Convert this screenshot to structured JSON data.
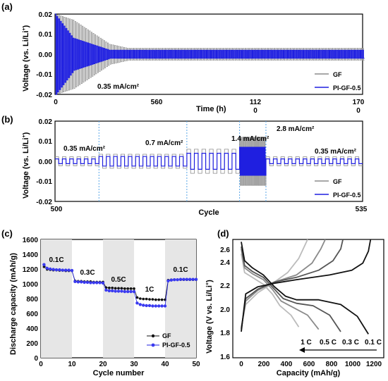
{
  "colors": {
    "gf": "#8c8c8c",
    "pi": "#1f1fe0",
    "pi_marker": "#3a3af0",
    "gf_marker": "#111111",
    "guide": "#59a6e8",
    "shade": "#e6e6e6"
  },
  "chart_data": [
    {
      "panel": "(a)",
      "type": "line",
      "xlabel": "Time (h)",
      "ylabel": "Voltage (vs. Li/Li⁺)",
      "xlim": [
        0,
        1700
      ],
      "ylim": [
        -0.02,
        0.02
      ],
      "x_ticks": [
        "0",
        "560",
        "112\n0",
        "170\n0"
      ],
      "y_ticks": [
        "0.02",
        "0.01",
        "0.00",
        "-0.01",
        "-0.02"
      ],
      "annotation": "0.35 mA/cm²",
      "series": [
        {
          "name": "GF",
          "description_envelope": [
            [
              0,
              0.02
            ],
            [
              100,
              0.017
            ],
            [
              200,
              0.011
            ],
            [
              300,
              0.005
            ],
            [
              400,
              0.003
            ],
            [
              1700,
              0.003
            ]
          ]
        },
        {
          "name": "PI-GF-0.5",
          "description_envelope": [
            [
              0,
              0.02
            ],
            [
              100,
              0.008
            ],
            [
              200,
              0.005
            ],
            [
              300,
              0.002
            ],
            [
              1700,
              0.002
            ]
          ]
        }
      ],
      "legend": [
        "GF",
        "PI-GF-0.5"
      ],
      "legend_position": "bottom-right"
    },
    {
      "panel": "(b)",
      "type": "line",
      "xlabel": "Cycle",
      "ylabel": "Voltage (vs. Li/Li⁺)",
      "xlim": [
        500,
        535
      ],
      "ylim": [
        -0.02,
        0.02
      ],
      "x_ticks": [
        "500",
        "535"
      ],
      "y_ticks": [
        "0.02",
        "0.01",
        "0.00",
        "-0.01",
        "-0.02"
      ],
      "regions": [
        {
          "label": "0.35 mA/cm²",
          "start": 500,
          "end": 505,
          "gf_amp": 0.0022,
          "pi_amp": 0.0012
        },
        {
          "label": "0.7 mA/cm²",
          "start": 505,
          "end": 515,
          "gf_amp": 0.0035,
          "pi_amp": 0.0024
        },
        {
          "label": "1.4 mA/cm²",
          "start": 515,
          "end": 521,
          "gf_amp": 0.006,
          "pi_amp": 0.004
        },
        {
          "label": "2.8 mA/cm²",
          "start": 521,
          "end": 524,
          "gf_amp": 0.012,
          "pi_amp": 0.007
        },
        {
          "label": "0.35 mA/cm²",
          "start": 524,
          "end": 535,
          "gf_amp": 0.0022,
          "pi_amp": 0.0012
        }
      ],
      "legend": [
        "GF",
        "PI-GF-0.5"
      ],
      "legend_position": "bottom-right"
    },
    {
      "panel": "(c)",
      "type": "scatter",
      "xlabel": "Cycle number",
      "ylabel": "Discharge capacity (mAh/g)",
      "xlim": [
        0,
        50
      ],
      "ylim": [
        0,
        1600
      ],
      "x_ticks": [
        "0",
        "10",
        "20",
        "30",
        "40",
        "50"
      ],
      "y_ticks": [
        "0",
        "200",
        "400",
        "600",
        "800",
        "1000",
        "1200",
        "1400",
        "1600"
      ],
      "rate_labels": [
        {
          "label": "0.1C",
          "x": 5,
          "y": 1270
        },
        {
          "label": "0.3C",
          "x": 15,
          "y": 1110
        },
        {
          "label": "0.5C",
          "x": 25,
          "y": 1020
        },
        {
          "label": "1C",
          "x": 35,
          "y": 860
        },
        {
          "label": "0.1C",
          "x": 45,
          "y": 1140
        }
      ],
      "shaded_ranges": [
        [
          0,
          10
        ],
        [
          20,
          30
        ],
        [
          40,
          50
        ]
      ],
      "x": [
        1,
        2,
        3,
        4,
        5,
        6,
        7,
        8,
        9,
        10,
        11,
        12,
        13,
        14,
        15,
        16,
        17,
        18,
        19,
        20,
        21,
        22,
        23,
        24,
        25,
        26,
        27,
        28,
        29,
        30,
        31,
        32,
        33,
        34,
        35,
        36,
        37,
        38,
        39,
        40,
        41,
        42,
        43,
        44,
        45,
        46,
        47,
        48,
        49,
        50
      ],
      "series": [
        {
          "name": "GF",
          "values": [
            1230,
            1195,
            1190,
            1185,
            1185,
            1180,
            1180,
            1175,
            1175,
            1175,
            1040,
            1035,
            1035,
            1030,
            1030,
            1030,
            1025,
            1025,
            1025,
            1025,
            950,
            945,
            945,
            940,
            940,
            940,
            935,
            935,
            935,
            935,
            815,
            800,
            795,
            795,
            790,
            790,
            785,
            785,
            785,
            785,
            1050,
            1055,
            1055,
            1055,
            1055,
            1055,
            1055,
            1055,
            1055,
            1055
          ]
        },
        {
          "name": "PI-GF-0.5",
          "values": [
            1260,
            1210,
            1200,
            1195,
            1190,
            1190,
            1185,
            1185,
            1185,
            1180,
            1030,
            1025,
            1025,
            1020,
            1020,
            1015,
            1015,
            1015,
            1015,
            1010,
            915,
            905,
            905,
            900,
            900,
            900,
            895,
            895,
            895,
            895,
            740,
            720,
            710,
            705,
            705,
            700,
            700,
            700,
            700,
            700,
            1040,
            1050,
            1055,
            1055,
            1060,
            1060,
            1060,
            1060,
            1060,
            1060
          ]
        }
      ],
      "legend": [
        "GF",
        "PI-GF-0.5"
      ],
      "legend_position": "bottom-right"
    },
    {
      "panel": "(d)",
      "type": "line",
      "xlabel": "Capacity (mAh/g)",
      "ylabel": "Voltage (V vs. Li/Li⁺)",
      "xlim": [
        0,
        1200
      ],
      "ylim": [
        1.6,
        2.6
      ],
      "x_ticks": [
        "0",
        "200",
        "400",
        "600",
        "800",
        "1000",
        "1200"
      ],
      "y_ticks": [
        "1.6",
        "1.8",
        "2.0",
        "2.2",
        "2.4",
        "2.6"
      ],
      "curve_labels": [
        "1 C",
        "0.5 C",
        "0.3 C",
        "0.1 C"
      ],
      "series": [
        {
          "name": "0.1 C",
          "color": "#111111",
          "discharge": [
            [
              0,
              2.58
            ],
            [
              30,
              2.42
            ],
            [
              100,
              2.36
            ],
            [
              200,
              2.3
            ],
            [
              300,
              2.2
            ],
            [
              400,
              2.12
            ],
            [
              500,
              2.09
            ],
            [
              700,
              2.09
            ],
            [
              900,
              2.05
            ],
            [
              1050,
              1.95
            ],
            [
              1150,
              1.8
            ]
          ],
          "charge": [
            [
              0,
              1.82
            ],
            [
              40,
              2.14
            ],
            [
              150,
              2.2
            ],
            [
              300,
              2.23
            ],
            [
              500,
              2.26
            ],
            [
              800,
              2.3
            ],
            [
              1000,
              2.34
            ],
            [
              1100,
              2.4
            ],
            [
              1150,
              2.5
            ],
            [
              1170,
              2.6
            ]
          ]
        },
        {
          "name": "0.3 C",
          "color": "#555555",
          "discharge": [
            [
              0,
              2.54
            ],
            [
              30,
              2.38
            ],
            [
              100,
              2.33
            ],
            [
              200,
              2.28
            ],
            [
              280,
              2.2
            ],
            [
              380,
              2.1
            ],
            [
              500,
              2.06
            ],
            [
              650,
              2.04
            ],
            [
              800,
              1.96
            ],
            [
              900,
              1.82
            ]
          ],
          "charge": [
            [
              0,
              1.84
            ],
            [
              40,
              2.1
            ],
            [
              150,
              2.18
            ],
            [
              300,
              2.24
            ],
            [
              500,
              2.28
            ],
            [
              700,
              2.34
            ],
            [
              830,
              2.42
            ],
            [
              900,
              2.52
            ],
            [
              920,
              2.6
            ]
          ]
        },
        {
          "name": "0.5 C",
          "color": "#8a8a8a",
          "discharge": [
            [
              0,
              2.52
            ],
            [
              30,
              2.36
            ],
            [
              100,
              2.31
            ],
            [
              200,
              2.26
            ],
            [
              280,
              2.18
            ],
            [
              360,
              2.08
            ],
            [
              480,
              2.02
            ],
            [
              600,
              1.96
            ],
            [
              700,
              1.84
            ]
          ],
          "charge": [
            [
              0,
              1.85
            ],
            [
              40,
              2.08
            ],
            [
              150,
              2.17
            ],
            [
              300,
              2.24
            ],
            [
              500,
              2.3
            ],
            [
              640,
              2.4
            ],
            [
              720,
              2.52
            ],
            [
              760,
              2.6
            ]
          ]
        },
        {
          "name": "1 C",
          "color": "#bbbbbb",
          "discharge": [
            [
              0,
              2.48
            ],
            [
              30,
              2.32
            ],
            [
              100,
              2.28
            ],
            [
              200,
              2.22
            ],
            [
              280,
              2.14
            ],
            [
              350,
              2.04
            ],
            [
              450,
              1.96
            ],
            [
              520,
              1.86
            ]
          ],
          "charge": [
            [
              0,
              1.86
            ],
            [
              40,
              2.05
            ],
            [
              150,
              2.15
            ],
            [
              300,
              2.24
            ],
            [
              420,
              2.32
            ],
            [
              520,
              2.44
            ],
            [
              580,
              2.56
            ],
            [
              600,
              2.6
            ]
          ]
        }
      ]
    }
  ],
  "text": {
    "a_label": "(a)",
    "b_label": "(b)",
    "c_label": "(c)",
    "d_label": "(d)",
    "a_xlabel": "Time (h)",
    "b_xlabel": "Cycle",
    "ab_ylabel_main": "Voltage (vs. Li/Li",
    "ylabel_sup": "+",
    "ab_ylabel_end": ")",
    "c_xlabel": "Cycle number",
    "c_ylabel": "Discharge capacity (mAh/g)",
    "d_xlabel": "Capacity (mAh/g)",
    "d_ylabel_main": "Voltage (V vs. Li/Li",
    "a_ann": "0.35 mA/cm²",
    "b_ann_1": "0.35 mA/cm²",
    "b_ann_2": "0.7 mA/cm²",
    "b_ann_3": "1.4 mA/cm²",
    "b_ann_4": "2.8 mA/cm²",
    "b_ann_5": "0.35 mA/cm²",
    "a_x0": "0",
    "a_x1": "560",
    "a_x2a": "112",
    "a_x2b": "0",
    "a_x3a": "170",
    "a_x3b": "0",
    "b_x0": "500",
    "b_x1": "535",
    "y_v_02": "0.02",
    "y_v_01": "0.01",
    "y_v_00": "0.00",
    "y_v_m01": "-0.01",
    "y_v_m02": "-0.02",
    "legend_gf": "GF",
    "legend_pi": "PI-GF-0.5",
    "c_y0": "0",
    "c_y200": "200",
    "c_y400": "400",
    "c_y600": "600",
    "c_y800": "800",
    "c_y1000": "1000",
    "c_y1200": "1200",
    "c_y1400": "1400",
    "c_y1600": "1600",
    "c_x0": "0",
    "c_x10": "10",
    "c_x20": "20",
    "c_x30": "30",
    "c_x40": "40",
    "c_x50": "50",
    "c_r1": "0.1C",
    "c_r2": "0.3C",
    "c_r3": "0.5C",
    "c_r4": "1C",
    "c_r5": "0.1C",
    "d_y16": "1.6",
    "d_y18": "1.8",
    "d_y20": "2.0",
    "d_y22": "2.2",
    "d_y24": "2.4",
    "d_y26": "2.6",
    "d_x0": "0",
    "d_x200": "200",
    "d_x400": "400",
    "d_x600": "600",
    "d_x800": "800",
    "d_x1000": "1000",
    "d_x1200": "1200",
    "d_c1": "1 C",
    "d_c2": "0.5 C",
    "d_c3": "0.3 C",
    "d_c4": "0.1 C"
  }
}
